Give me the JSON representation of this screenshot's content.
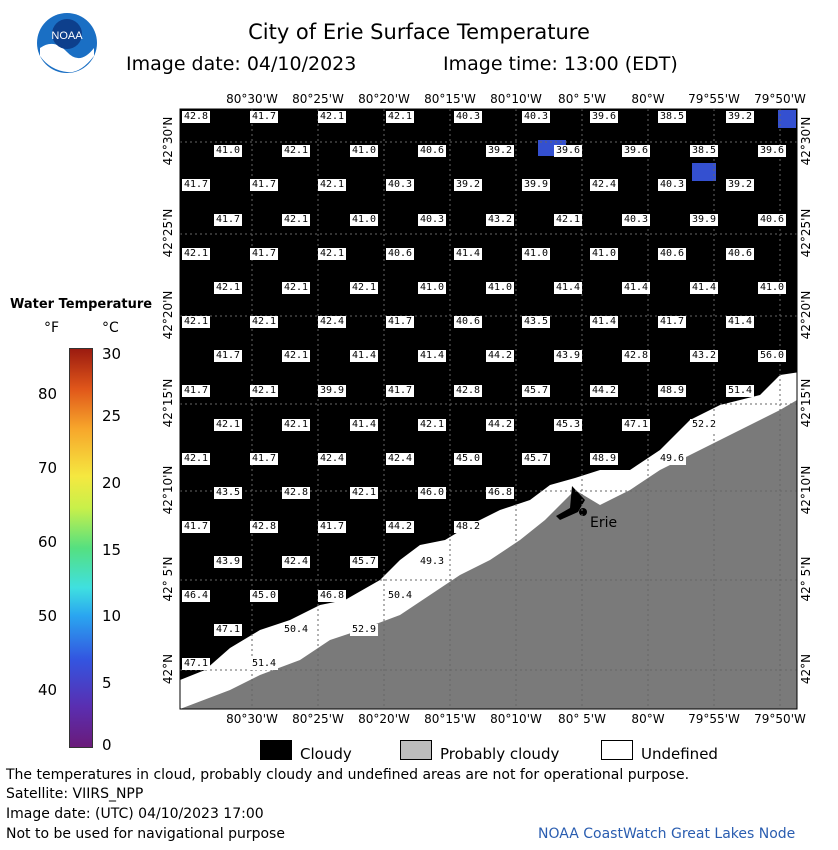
{
  "header": {
    "title": "City of Erie Surface Temperature",
    "image_date_label": "Image date: 04/10/2023",
    "image_time_label": "Image time: 13:00 (EDT)",
    "logo_text": "NOAA"
  },
  "colorbar": {
    "title": "Water Temperature",
    "unit_f": "°F",
    "unit_c": "°C",
    "f_ticks": [
      "80",
      "70",
      "60",
      "50",
      "40"
    ],
    "c_ticks": [
      "30",
      "25",
      "20",
      "15",
      "10",
      "5",
      "0"
    ]
  },
  "map": {
    "lon_labels_top": [
      "80°30'W",
      "80°25'W",
      "80°20'W",
      "80°15'W",
      "80°10'W",
      "80° 5'W",
      "80°W",
      "79°55'W",
      "79°50'W"
    ],
    "lon_labels_bottom": [
      "80°30'W",
      "80°25'W",
      "80°20'W",
      "80°15'W",
      "80°10'W",
      "80° 5'W",
      "80°W",
      "79°55'W",
      "79°50'W"
    ],
    "lat_labels": [
      "42°30'N",
      "42°25'N",
      "42°20'N",
      "42°15'N",
      "42°10'N",
      "42° 5'N",
      "42°N"
    ],
    "city_label": "Erie",
    "temp_rows": [
      [
        "42.8",
        "41.7",
        "42.1",
        "42.1",
        "40.3",
        "40.3",
        "39.6",
        "38.5",
        "39.2"
      ],
      [
        "41.0",
        "42.1",
        "41.0",
        "40.6",
        "39.2",
        "39.6",
        "39.6",
        "38.5",
        "39.6"
      ],
      [
        "41.7",
        "41.7",
        "42.1",
        "40.3",
        "39.2",
        "39.9",
        "42.4",
        "40.3",
        "39.2"
      ],
      [
        "41.7",
        "42.1",
        "41.0",
        "40.3",
        "43.2",
        "42.1",
        "40.3",
        "39.9",
        "40.6"
      ],
      [
        "42.1",
        "41.7",
        "42.1",
        "40.6",
        "41.4",
        "41.0",
        "41.0",
        "40.6",
        "40.6"
      ],
      [
        "42.1",
        "42.1",
        "42.1",
        "41.0",
        "41.0",
        "41.4",
        "41.4",
        "41.4",
        "41.0"
      ],
      [
        "42.1",
        "42.1",
        "42.4",
        "41.7",
        "40.6",
        "43.5",
        "41.4",
        "41.7",
        "41.4"
      ],
      [
        "41.7",
        "42.1",
        "41.4",
        "41.4",
        "44.2",
        "43.9",
        "42.8",
        "43.2",
        "56.0"
      ],
      [
        "41.7",
        "42.1",
        "39.9",
        "41.7",
        "42.8",
        "45.7",
        "44.2",
        "48.9",
        "51.4"
      ],
      [
        "42.1",
        "42.1",
        "41.4",
        "42.1",
        "44.2",
        "45.3",
        "47.1",
        "52.2"
      ],
      [
        "42.1",
        "41.7",
        "42.4",
        "42.4",
        "45.0",
        "45.7",
        "48.9",
        "49.6"
      ],
      [
        "43.5",
        "42.8",
        "42.1",
        "46.0",
        "46.8"
      ],
      [
        "41.7",
        "42.8",
        "41.7",
        "44.2",
        "48.2"
      ],
      [
        "43.9",
        "42.4",
        "45.7",
        "49.3"
      ],
      [
        "46.4",
        "45.0",
        "46.8",
        "50.4"
      ],
      [
        "47.1",
        "50.4",
        "52.9"
      ],
      [
        "47.1",
        "51.4"
      ]
    ]
  },
  "legend": {
    "cloudy": "Cloudy",
    "probably_cloudy": "Probably cloudy",
    "undefined": "Undefined"
  },
  "footer": {
    "disclaimer": "The temperatures in cloud, probably cloudy and undefined areas are not for operational purpose.",
    "satellite": "Satellite: VIIRS_NPP",
    "image_date_utc": "Image date: (UTC) 04/10/2023  17:00",
    "nav_warning": "Not to be used for navigational purpose",
    "credit": "NOAA CoastWatch Great Lakes Node"
  },
  "colors": {
    "cloud": "#000000",
    "land": "#7a7a7a",
    "probably_cloudy": "#bdbdbd",
    "undefined": "#ffffff",
    "credit_text": "#2a5db0"
  }
}
